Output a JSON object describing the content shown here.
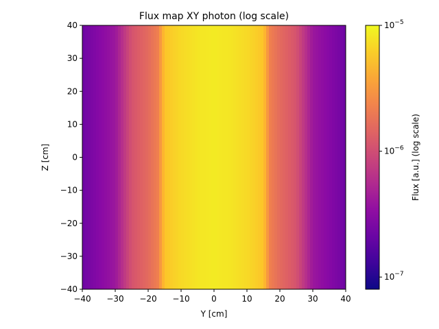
{
  "chart_data": {
    "type": "heatmap",
    "title": "Flux map XY photon (log scale)",
    "xlabel": "Y [cm]",
    "ylabel": "Z [cm]",
    "xlim": [
      -40,
      40
    ],
    "ylim": [
      -40,
      40
    ],
    "xticks": [
      -40,
      -30,
      -20,
      -10,
      0,
      10,
      20,
      30,
      40
    ],
    "yticks": [
      -40,
      -30,
      -20,
      -10,
      0,
      10,
      20,
      30,
      40
    ],
    "colorbar": {
      "label": "Flux [a.u.] (log scale)",
      "scale": "log",
      "vmin": 8e-08,
      "vmax": 1e-05,
      "colormap": "plasma",
      "ticks": [
        {
          "value": 1e-07,
          "base": "10",
          "exp": "−7"
        },
        {
          "value": 1e-06,
          "base": "10",
          "exp": "−6"
        },
        {
          "value": 1e-05,
          "base": "10",
          "exp": "−5"
        }
      ]
    },
    "profile": {
      "y": [
        -40,
        -35,
        -30,
        -25,
        -20,
        -17,
        -15,
        -10,
        -5,
        0,
        5,
        10,
        15,
        17,
        20,
        25,
        30,
        35,
        40
      ],
      "flux": [
        2.2e-07,
        3e-07,
        4e-07,
        1.1e-06,
        1.6e-06,
        2.2e-06,
        5.5e-06,
        7e-06,
        8e-06,
        8.5e-06,
        8e-06,
        7e-06,
        5.5e-06,
        2.2e-06,
        1.6e-06,
        1.1e-06,
        4e-07,
        3e-07,
        2.2e-07
      ]
    }
  }
}
